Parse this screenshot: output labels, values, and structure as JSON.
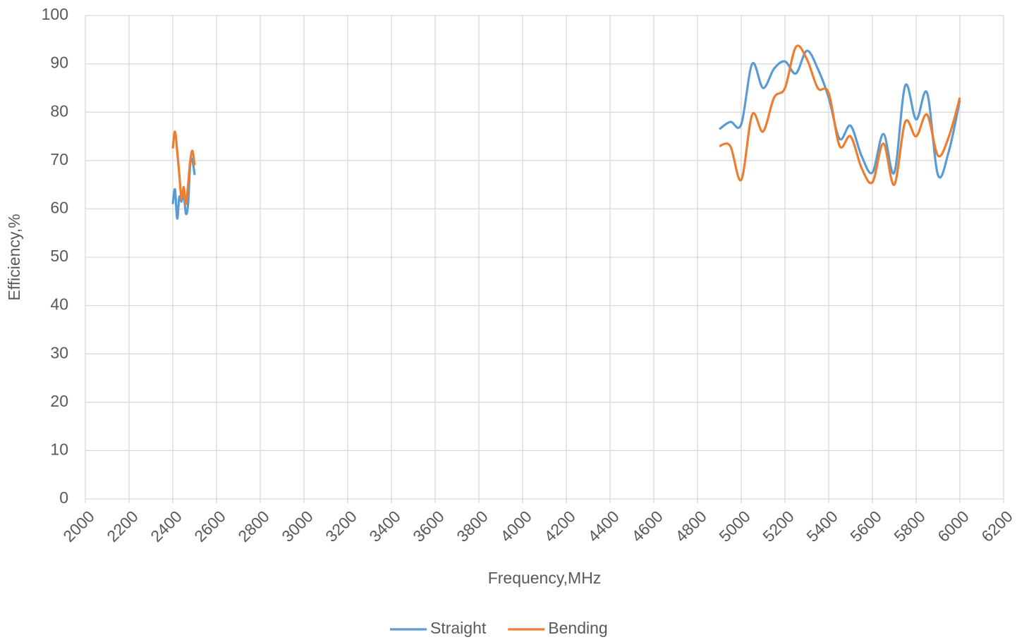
{
  "chart_data": {
    "type": "line",
    "x_label": "Frequency,MHz",
    "y_label": "Efficiency,%",
    "x": [
      2400,
      2410,
      2420,
      2430,
      2440,
      2450,
      2460,
      2470,
      2480,
      2490,
      2500,
      null,
      4900,
      4950,
      5000,
      5050,
      5100,
      5150,
      5200,
      5250,
      5300,
      5350,
      5400,
      5450,
      5500,
      5550,
      5600,
      5650,
      5700,
      5750,
      5800,
      5850,
      5900,
      5950,
      6000
    ],
    "series": [
      {
        "name": "Straight",
        "color": "#5b9bd5",
        "values": [
          61,
          64,
          58,
          62.5,
          61.5,
          63,
          59,
          61,
          69.5,
          70,
          67,
          null,
          76.5,
          78,
          77.5,
          90,
          85,
          89,
          90.5,
          88,
          92.7,
          89,
          83,
          74.5,
          77.2,
          71,
          67.5,
          75.5,
          67.5,
          85.5,
          78.5,
          84,
          67,
          72,
          82.5
        ]
      },
      {
        "name": "Bending",
        "color": "#ed7d31",
        "values": [
          72.5,
          76,
          72,
          67,
          62,
          64.5,
          61,
          65,
          70,
          72,
          69,
          null,
          73,
          73,
          66,
          79.5,
          76,
          83,
          85,
          93.5,
          91,
          85,
          84,
          73,
          75,
          68.5,
          65.5,
          73.5,
          65,
          78,
          75,
          79.5,
          71,
          75,
          83
        ]
      }
    ],
    "xlim": [
      2000,
      6200
    ],
    "xticks": [
      2000,
      2200,
      2400,
      2600,
      2800,
      3000,
      3200,
      3400,
      3600,
      3800,
      4000,
      4200,
      4400,
      4600,
      4800,
      5000,
      5200,
      5400,
      5600,
      5800,
      6000,
      6200
    ],
    "ylim": [
      0,
      100
    ],
    "yticks": [
      0,
      10,
      20,
      30,
      40,
      50,
      60,
      70,
      80,
      90,
      100
    ],
    "grid": true,
    "smooth": true,
    "legend": "bottom"
  }
}
